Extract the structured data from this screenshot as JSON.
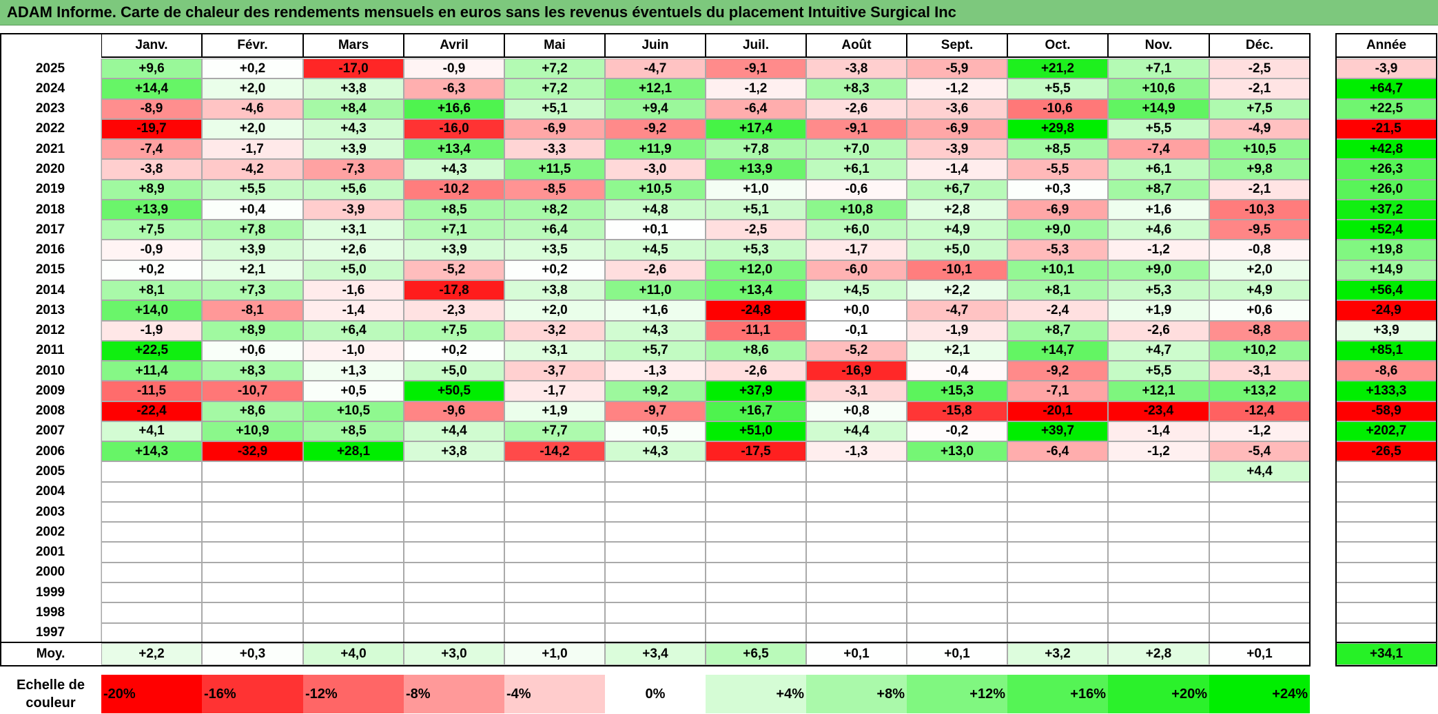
{
  "title": "ADAM Informe. Carte de chaleur des rendements mensuels en euros sans les revenus éventuels du placement Intuitive Surgical Inc",
  "colors": {
    "title_bar": "#7dc87d",
    "max_red": "#ff0000",
    "max_green": "#00ee00",
    "neutral": "#ffffff"
  },
  "chart_data": {
    "type": "heatmap",
    "title": "ADAM Informe. Carte de chaleur des rendements mensuels en euros sans les revenus éventuels du placement Intuitive Surgical Inc",
    "months": [
      "Janv.",
      "Févr.",
      "Mars",
      "Avril",
      "Mai",
      "Juin",
      "Juil.",
      "Août",
      "Sept.",
      "Oct.",
      "Nov.",
      "Déc."
    ],
    "annual_label": "Année",
    "rows": [
      {
        "year": "2025",
        "values": [
          "+9,6",
          "+0,2",
          "-17,0",
          "-0,9",
          "+7,2",
          "-4,7",
          "-9,1",
          "-3,8",
          "-5,9",
          "+21,2",
          "+7,1",
          "-2,5"
        ],
        "annual": "-3,9"
      },
      {
        "year": "2024",
        "values": [
          "+14,4",
          "+2,0",
          "+3,8",
          "-6,3",
          "+7,2",
          "+12,1",
          "-1,2",
          "+8,3",
          "-1,2",
          "+5,5",
          "+10,6",
          "-2,1"
        ],
        "annual": "+64,7"
      },
      {
        "year": "2023",
        "values": [
          "-8,9",
          "-4,6",
          "+8,4",
          "+16,6",
          "+5,1",
          "+9,4",
          "-6,4",
          "-2,6",
          "-3,6",
          "-10,6",
          "+14,9",
          "+7,5"
        ],
        "annual": "+22,5"
      },
      {
        "year": "2022",
        "values": [
          "-19,7",
          "+2,0",
          "+4,3",
          "-16,0",
          "-6,9",
          "-9,2",
          "+17,4",
          "-9,1",
          "-6,9",
          "+29,8",
          "+5,5",
          "-4,9"
        ],
        "annual": "-21,5"
      },
      {
        "year": "2021",
        "values": [
          "-7,4",
          "-1,7",
          "+3,9",
          "+13,4",
          "-3,3",
          "+11,9",
          "+7,8",
          "+7,0",
          "-3,9",
          "+8,5",
          "-7,4",
          "+10,5"
        ],
        "annual": "+42,8"
      },
      {
        "year": "2020",
        "values": [
          "-3,8",
          "-4,2",
          "-7,3",
          "+4,3",
          "+11,5",
          "-3,0",
          "+13,9",
          "+6,1",
          "-1,4",
          "-5,5",
          "+6,1",
          "+9,8"
        ],
        "annual": "+26,3"
      },
      {
        "year": "2019",
        "values": [
          "+8,9",
          "+5,5",
          "+5,6",
          "-10,2",
          "-8,5",
          "+10,5",
          "+1,0",
          "-0,6",
          "+6,7",
          "+0,3",
          "+8,7",
          "-2,1"
        ],
        "annual": "+26,0"
      },
      {
        "year": "2018",
        "values": [
          "+13,9",
          "+0,4",
          "-3,9",
          "+8,5",
          "+8,2",
          "+4,8",
          "+5,1",
          "+10,8",
          "+2,8",
          "-6,9",
          "+1,6",
          "-10,3"
        ],
        "annual": "+37,2"
      },
      {
        "year": "2017",
        "values": [
          "+7,5",
          "+7,8",
          "+3,1",
          "+7,1",
          "+6,4",
          "+0,1",
          "-2,5",
          "+6,0",
          "+4,9",
          "+9,0",
          "+4,6",
          "-9,5"
        ],
        "annual": "+52,4"
      },
      {
        "year": "2016",
        "values": [
          "-0,9",
          "+3,9",
          "+2,6",
          "+3,9",
          "+3,5",
          "+4,5",
          "+5,3",
          "-1,7",
          "+5,0",
          "-5,3",
          "-1,2",
          "-0,8"
        ],
        "annual": "+19,8"
      },
      {
        "year": "2015",
        "values": [
          "+0,2",
          "+2,1",
          "+5,0",
          "-5,2",
          "+0,2",
          "-2,6",
          "+12,0",
          "-6,0",
          "-10,1",
          "+10,1",
          "+9,0",
          "+2,0"
        ],
        "annual": "+14,9"
      },
      {
        "year": "2014",
        "values": [
          "+8,1",
          "+7,3",
          "-1,6",
          "-17,8",
          "+3,8",
          "+11,0",
          "+13,4",
          "+4,5",
          "+2,2",
          "+8,1",
          "+5,3",
          "+4,9"
        ],
        "annual": "+56,4"
      },
      {
        "year": "2013",
        "values": [
          "+14,0",
          "-8,1",
          "-1,4",
          "-2,3",
          "+2,0",
          "+1,6",
          "-24,8",
          "+0,0",
          "-4,7",
          "-2,4",
          "+1,9",
          "+0,6"
        ],
        "annual": "-24,9"
      },
      {
        "year": "2012",
        "values": [
          "-1,9",
          "+8,9",
          "+6,4",
          "+7,5",
          "-3,2",
          "+4,3",
          "-11,1",
          "-0,1",
          "-1,9",
          "+8,7",
          "-2,6",
          "-8,8"
        ],
        "annual": "+3,9"
      },
      {
        "year": "2011",
        "values": [
          "+22,5",
          "+0,6",
          "-1,0",
          "+0,2",
          "+3,1",
          "+5,7",
          "+8,6",
          "-5,2",
          "+2,1",
          "+14,7",
          "+4,7",
          "+10,2"
        ],
        "annual": "+85,1"
      },
      {
        "year": "2010",
        "values": [
          "+11,4",
          "+8,3",
          "+1,3",
          "+5,0",
          "-3,7",
          "-1,3",
          "-2,6",
          "-16,9",
          "-0,4",
          "-9,2",
          "+5,5",
          "-3,1"
        ],
        "annual": "-8,6"
      },
      {
        "year": "2009",
        "values": [
          "-11,5",
          "-10,7",
          "+0,5",
          "+50,5",
          "-1,7",
          "+9,2",
          "+37,9",
          "-3,1",
          "+15,3",
          "-7,1",
          "+12,1",
          "+13,2"
        ],
        "annual": "+133,3"
      },
      {
        "year": "2008",
        "values": [
          "-22,4",
          "+8,6",
          "+10,5",
          "-9,6",
          "+1,9",
          "-9,7",
          "+16,7",
          "+0,8",
          "-15,8",
          "-20,1",
          "-23,4",
          "-12,4"
        ],
        "annual": "-58,9"
      },
      {
        "year": "2007",
        "values": [
          "+4,1",
          "+10,9",
          "+8,5",
          "+4,4",
          "+7,7",
          "+0,5",
          "+51,0",
          "+4,4",
          "-0,2",
          "+39,7",
          "-1,4",
          "-1,2"
        ],
        "annual": "+202,7"
      },
      {
        "year": "2006",
        "values": [
          "+14,3",
          "-32,9",
          "+28,1",
          "+3,8",
          "-14,2",
          "+4,3",
          "-17,5",
          "-1,3",
          "+13,0",
          "-6,4",
          "-1,2",
          "-5,4"
        ],
        "annual": "-26,5"
      },
      {
        "year": "2005",
        "values": [
          "",
          "",
          "",
          "",
          "",
          "",
          "",
          "",
          "",
          "",
          "",
          "+4,4"
        ],
        "annual": ""
      },
      {
        "year": "2004",
        "values": [
          "",
          "",
          "",
          "",
          "",
          "",
          "",
          "",
          "",
          "",
          "",
          ""
        ],
        "annual": ""
      },
      {
        "year": "2003",
        "values": [
          "",
          "",
          "",
          "",
          "",
          "",
          "",
          "",
          "",
          "",
          "",
          ""
        ],
        "annual": ""
      },
      {
        "year": "2002",
        "values": [
          "",
          "",
          "",
          "",
          "",
          "",
          "",
          "",
          "",
          "",
          "",
          ""
        ],
        "annual": ""
      },
      {
        "year": "2001",
        "values": [
          "",
          "",
          "",
          "",
          "",
          "",
          "",
          "",
          "",
          "",
          "",
          ""
        ],
        "annual": ""
      },
      {
        "year": "2000",
        "values": [
          "",
          "",
          "",
          "",
          "",
          "",
          "",
          "",
          "",
          "",
          "",
          ""
        ],
        "annual": ""
      },
      {
        "year": "1999",
        "values": [
          "",
          "",
          "",
          "",
          "",
          "",
          "",
          "",
          "",
          "",
          "",
          ""
        ],
        "annual": ""
      },
      {
        "year": "1998",
        "values": [
          "",
          "",
          "",
          "",
          "",
          "",
          "",
          "",
          "",
          "",
          "",
          ""
        ],
        "annual": ""
      },
      {
        "year": "1997",
        "values": [
          "",
          "",
          "",
          "",
          "",
          "",
          "",
          "",
          "",
          "",
          "",
          ""
        ],
        "annual": ""
      }
    ],
    "average": {
      "label": "Moy.",
      "values": [
        "+2,2",
        "+0,3",
        "+4,0",
        "+3,0",
        "+1,0",
        "+3,4",
        "+6,5",
        "+0,1",
        "+0,1",
        "+3,2",
        "+2,8",
        "+0,1"
      ],
      "annual": "+34,1"
    },
    "scale": {
      "label_line1": "Echelle de",
      "label_line2": "couleur",
      "stops": [
        {
          "label": "-20%",
          "value": -20
        },
        {
          "label": "-16%",
          "value": -16
        },
        {
          "label": "-12%",
          "value": -12
        },
        {
          "label": "-8%",
          "value": -8
        },
        {
          "label": "-4%",
          "value": -4
        },
        {
          "label": "0%",
          "value": 0
        },
        {
          "label": "+4%",
          "value": 4
        },
        {
          "label": "+8%",
          "value": 8
        },
        {
          "label": "+12%",
          "value": 12
        },
        {
          "label": "+16%",
          "value": 16
        },
        {
          "label": "+20%",
          "value": 20
        },
        {
          "label": "+24%",
          "value": 24
        }
      ]
    }
  }
}
